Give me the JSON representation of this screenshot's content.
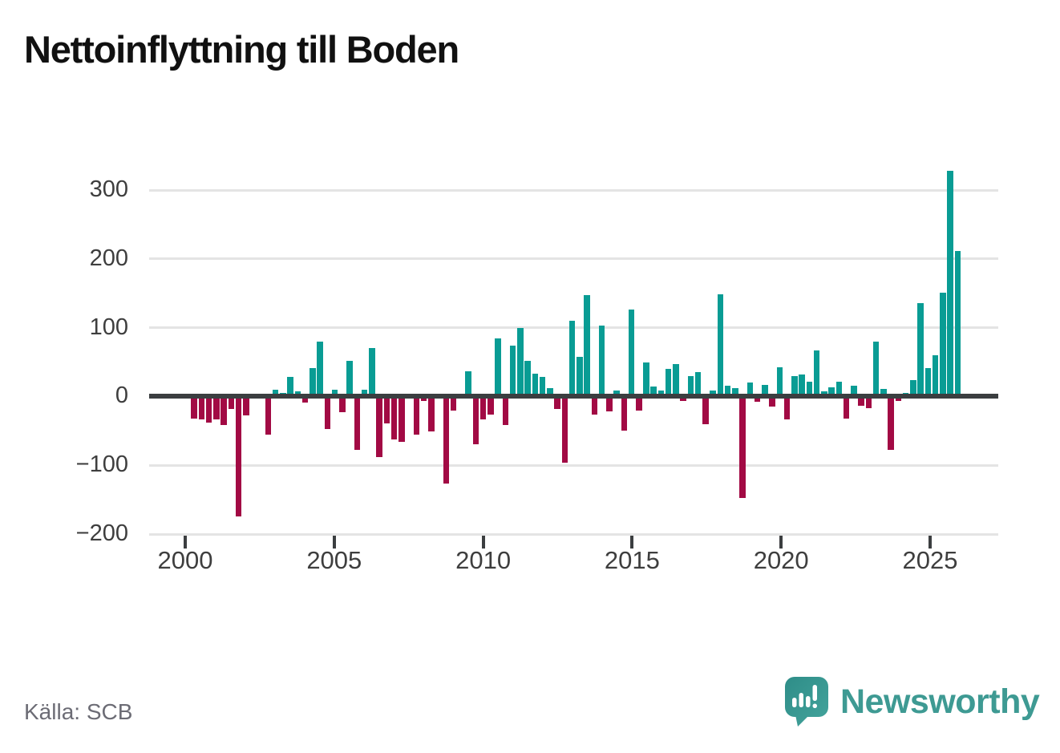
{
  "title": "Nettoinflyttning till Boden",
  "source": "Källa: SCB",
  "logo": {
    "text": "Newsworthy"
  },
  "chart_data": {
    "type": "bar",
    "title": "Nettoinflyttning till Boden",
    "xlabel": "",
    "ylabel": "",
    "grid": true,
    "legend": false,
    "ylim": [
      -200,
      334
    ],
    "y_tick_values": [
      300,
      200,
      100,
      0,
      -100,
      -200
    ],
    "y_tick_labels": [
      "300",
      "200",
      "100",
      "0",
      "−100",
      "−200"
    ],
    "x_tick_labels": [
      "2000",
      "2005",
      "2010",
      "2015",
      "2020",
      "2025"
    ],
    "colors": {
      "positive": "#099c94",
      "negative": "#a20a44"
    },
    "categories": [
      "2000 Q1",
      "2000 Q2",
      "2000 Q3",
      "2000 Q4",
      "2001 Q1",
      "2001 Q2",
      "2001 Q3",
      "2001 Q4",
      "2002 Q1",
      "2002 Q2",
      "2002 Q3",
      "2002 Q4",
      "2003 Q1",
      "2003 Q2",
      "2003 Q3",
      "2003 Q4",
      "2004 Q1",
      "2004 Q2",
      "2004 Q3",
      "2004 Q4",
      "2005 Q1",
      "2005 Q2",
      "2005 Q3",
      "2005 Q4",
      "2006 Q1",
      "2006 Q2",
      "2006 Q3",
      "2006 Q4",
      "2007 Q1",
      "2007 Q2",
      "2007 Q3",
      "2007 Q4",
      "2008 Q1",
      "2008 Q2",
      "2008 Q3",
      "2008 Q4",
      "2009 Q1",
      "2009 Q2",
      "2009 Q3",
      "2009 Q4",
      "2010 Q1",
      "2010 Q2",
      "2010 Q3",
      "2010 Q4",
      "2011 Q1",
      "2011 Q2",
      "2011 Q3",
      "2011 Q4",
      "2012 Q1",
      "2012 Q2",
      "2012 Q3",
      "2012 Q4",
      "2013 Q1",
      "2013 Q2",
      "2013 Q3",
      "2013 Q4",
      "2014 Q1",
      "2014 Q2",
      "2014 Q3",
      "2014 Q4",
      "2015 Q1",
      "2015 Q2",
      "2015 Q3",
      "2015 Q4",
      "2016 Q1",
      "2016 Q2",
      "2016 Q3",
      "2016 Q4",
      "2017 Q1",
      "2017 Q2",
      "2017 Q3",
      "2017 Q4",
      "2018 Q1",
      "2018 Q2",
      "2018 Q3",
      "2018 Q4",
      "2019 Q1",
      "2019 Q2",
      "2019 Q3",
      "2019 Q4",
      "2020 Q1",
      "2020 Q2",
      "2020 Q3",
      "2020 Q4",
      "2021 Q1",
      "2021 Q2",
      "2021 Q3",
      "2021 Q4",
      "2022 Q1",
      "2022 Q2",
      "2022 Q3",
      "2022 Q4",
      "2023 Q1",
      "2023 Q2",
      "2023 Q3",
      "2023 Q4",
      "2024 Q1",
      "2024 Q2",
      "2024 Q3",
      "2024 Q4",
      "2025 Q1",
      "2025 Q2",
      "2025 Q3",
      "2025 Q4"
    ],
    "values": [
      -32,
      -33,
      -38,
      -33,
      -41,
      -18,
      -174,
      -27,
      0,
      0,
      -55,
      10,
      5,
      28,
      8,
      -9,
      41,
      80,
      -47,
      10,
      -23,
      52,
      -78,
      10,
      70,
      -88,
      -39,
      -63,
      -66,
      0,
      -56,
      -6,
      -51,
      0,
      -127,
      -21,
      0,
      37,
      -69,
      -33,
      -26,
      85,
      -42,
      74,
      100,
      52,
      33,
      29,
      12,
      -18,
      -96,
      110,
      58,
      148,
      -26,
      103,
      -22,
      9,
      -50,
      127,
      -21,
      49,
      15,
      9,
      40,
      47,
      -6,
      30,
      36,
      -40,
      9,
      149,
      16,
      12,
      -147,
      20,
      -8,
      17,
      -15,
      43,
      -33,
      30,
      32,
      22,
      67,
      7,
      13,
      22,
      -32,
      16,
      -13,
      -17,
      80,
      11,
      -78,
      -6,
      5,
      24,
      136,
      41,
      60,
      151,
      328,
      211
    ]
  }
}
